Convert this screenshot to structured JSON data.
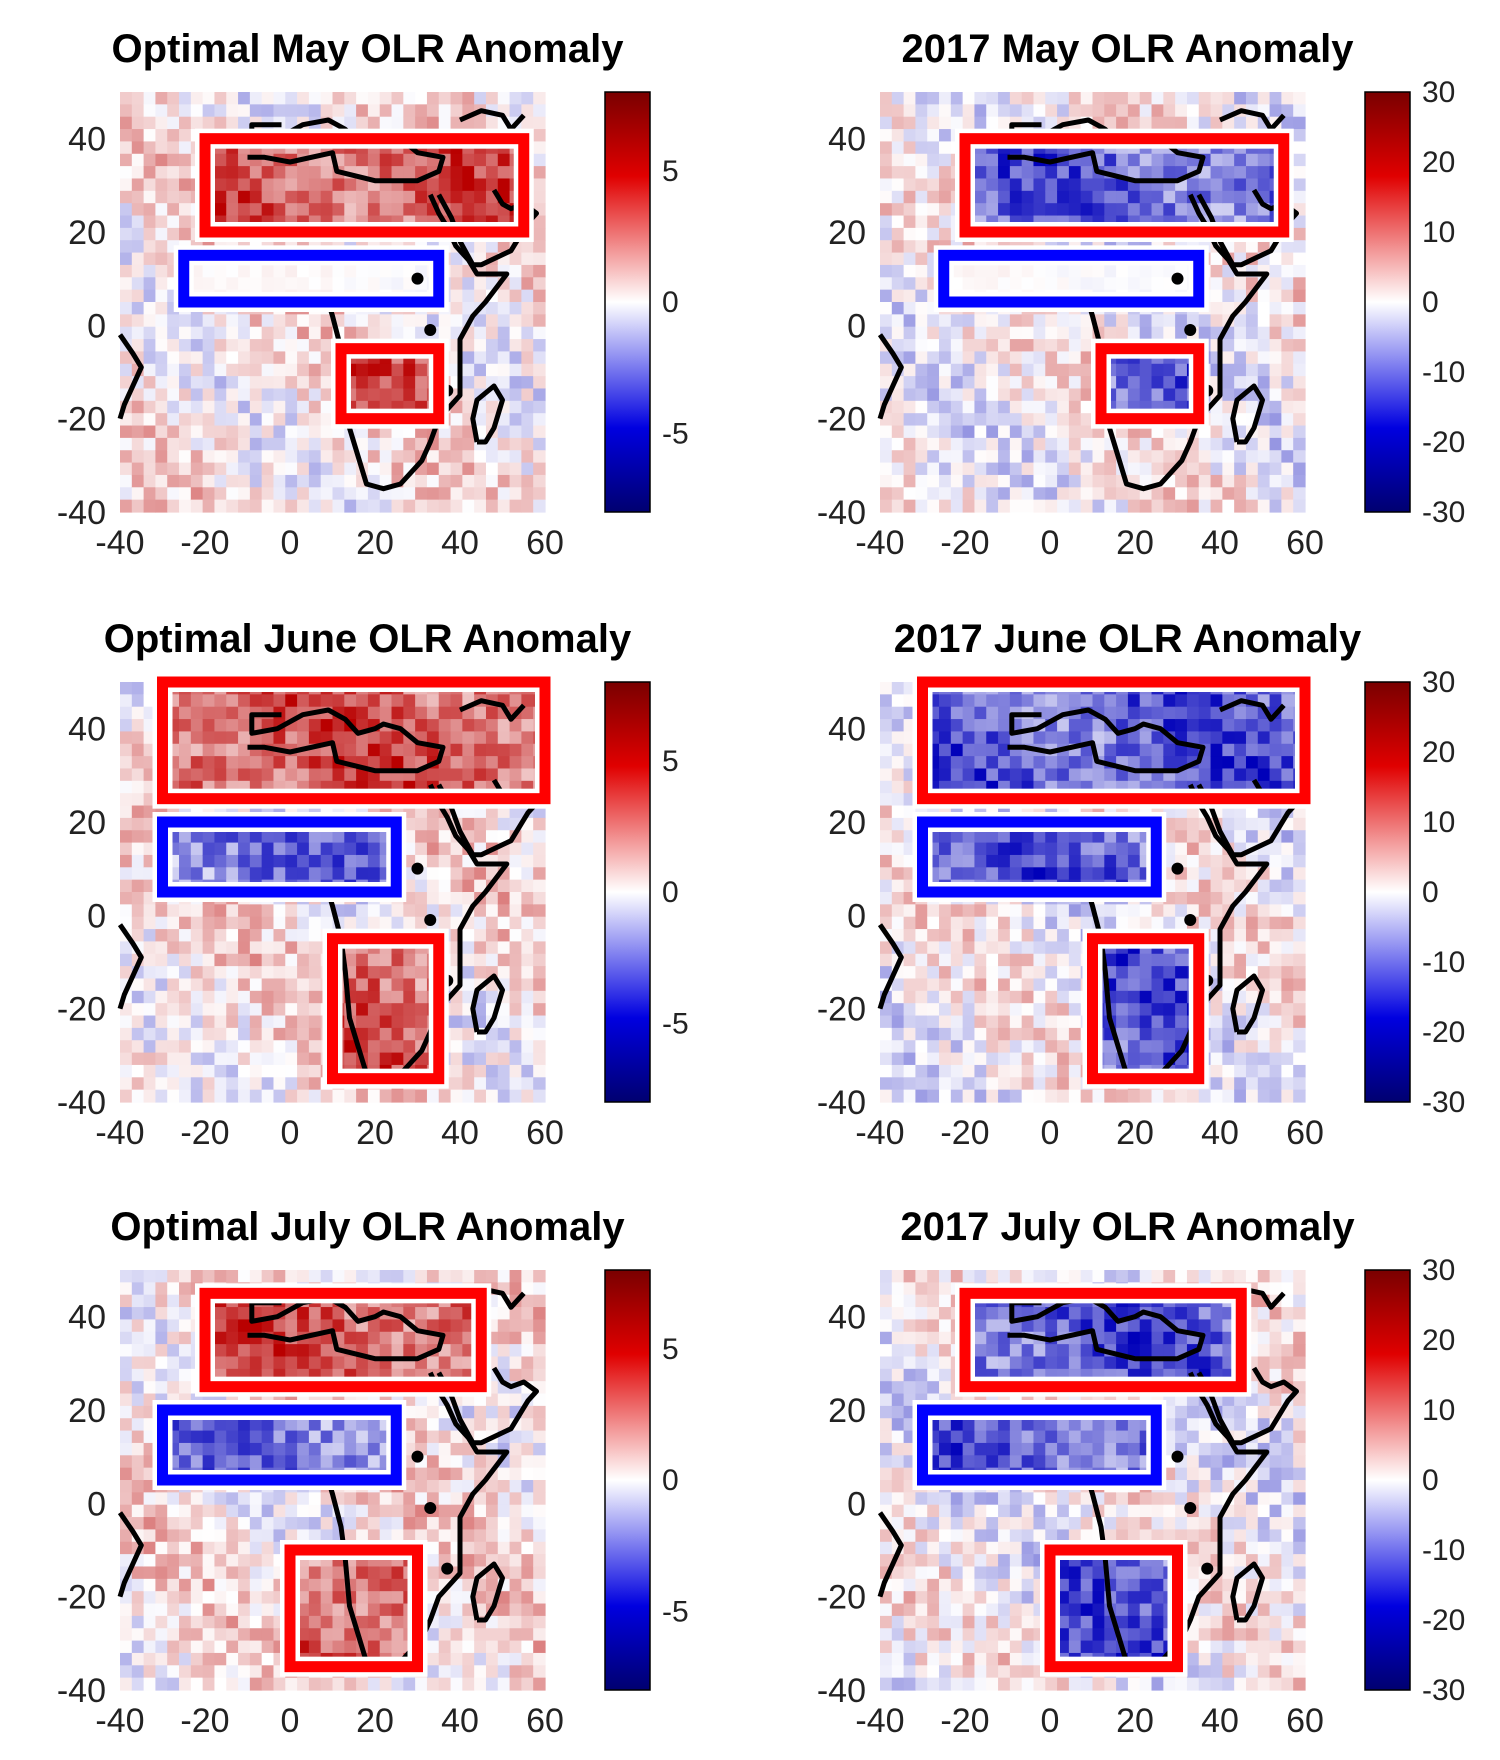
{
  "figure": {
    "panels": [
      {
        "id": "may-optimal",
        "title": "Optimal May OLR Anomaly",
        "colorbar": {
          "range": [
            -8,
            8
          ],
          "ticks": [
            5,
            0,
            -5
          ],
          "tick_labels": [
            "5",
            "0",
            "-5"
          ]
        }
      },
      {
        "id": "may-2017",
        "title": "2017 May OLR Anomaly",
        "colorbar": {
          "range": [
            -30,
            30
          ],
          "ticks": [
            30,
            20,
            10,
            0,
            -10,
            -20,
            -30
          ],
          "tick_labels": [
            "30",
            "20",
            "10",
            "0",
            "-10",
            "-20",
            "-30"
          ]
        }
      },
      {
        "id": "june-optimal",
        "title": "Optimal June OLR Anomaly",
        "colorbar": {
          "range": [
            -8,
            8
          ],
          "ticks": [
            5,
            0,
            -5
          ],
          "tick_labels": [
            "5",
            "0",
            "-5"
          ]
        }
      },
      {
        "id": "june-2017",
        "title": "2017 June OLR Anomaly",
        "colorbar": {
          "range": [
            -30,
            30
          ],
          "ticks": [
            30,
            20,
            10,
            0,
            -10,
            -20,
            -30
          ],
          "tick_labels": [
            "30",
            "20",
            "10",
            "0",
            "-10",
            "-20",
            "-30"
          ]
        }
      },
      {
        "id": "july-optimal",
        "title": "Optimal July OLR Anomaly",
        "colorbar": {
          "range": [
            -8,
            8
          ],
          "ticks": [
            5,
            0,
            -5
          ],
          "tick_labels": [
            "5",
            "0",
            "-5"
          ]
        }
      },
      {
        "id": "july-2017",
        "title": "2017 July OLR Anomaly",
        "colorbar": {
          "range": [
            -30,
            30
          ],
          "ticks": [
            30,
            20,
            10,
            0,
            -10,
            -20,
            -30
          ],
          "tick_labels": [
            "30",
            "20",
            "10",
            "0",
            "-10",
            "-20",
            "-30"
          ]
        }
      }
    ],
    "x_ticks": [
      "-40",
      "-20",
      "0",
      "20",
      "40",
      "60"
    ],
    "y_ticks": [
      "40",
      "20",
      "0",
      "-20",
      "-40"
    ],
    "colors": {
      "positive": "#e00000",
      "negative": "#0000e0",
      "coast": "#000000",
      "red_box": "#ff0000",
      "blue_box": "#0000ff"
    }
  },
  "chart_data": [
    {
      "type": "heatmap",
      "title": "Optimal May OLR Anomaly",
      "x_range": [
        -40,
        60
      ],
      "y_range": [
        -40,
        50
      ],
      "colorbar_range": [
        -8,
        8
      ],
      "boxes": [
        {
          "color": "red",
          "lon": [
            -20,
            55
          ],
          "lat": [
            20,
            40
          ],
          "sign": "positive"
        },
        {
          "color": "blue",
          "lon": [
            -25,
            35
          ],
          "lat": [
            5,
            15
          ],
          "sign": "neutral"
        },
        {
          "color": "red",
          "lon": [
            12,
            35
          ],
          "lat": [
            -20,
            -5
          ],
          "sign": "positive"
        }
      ]
    },
    {
      "type": "heatmap",
      "title": "2017 May OLR Anomaly",
      "x_range": [
        -40,
        60
      ],
      "y_range": [
        -40,
        50
      ],
      "colorbar_range": [
        -30,
        30
      ],
      "boxes": [
        {
          "color": "red",
          "lon": [
            -20,
            55
          ],
          "lat": [
            20,
            40
          ],
          "sign": "negative"
        },
        {
          "color": "blue",
          "lon": [
            -25,
            35
          ],
          "lat": [
            5,
            15
          ],
          "sign": "neutral"
        },
        {
          "color": "red",
          "lon": [
            12,
            35
          ],
          "lat": [
            -20,
            -5
          ],
          "sign": "negative"
        }
      ]
    },
    {
      "type": "heatmap",
      "title": "Optimal June OLR Anomaly",
      "x_range": [
        -40,
        60
      ],
      "y_range": [
        -40,
        50
      ],
      "colorbar_range": [
        -8,
        8
      ],
      "boxes": [
        {
          "color": "red",
          "lon": [
            -30,
            60
          ],
          "lat": [
            25,
            50
          ],
          "sign": "positive"
        },
        {
          "color": "blue",
          "lon": [
            -30,
            25
          ],
          "lat": [
            5,
            20
          ],
          "sign": "negative"
        },
        {
          "color": "red",
          "lon": [
            10,
            35
          ],
          "lat": [
            -35,
            -5
          ],
          "sign": "positive"
        }
      ]
    },
    {
      "type": "heatmap",
      "title": "2017 June OLR Anomaly",
      "x_range": [
        -40,
        60
      ],
      "y_range": [
        -40,
        50
      ],
      "colorbar_range": [
        -30,
        30
      ],
      "boxes": [
        {
          "color": "red",
          "lon": [
            -30,
            60
          ],
          "lat": [
            25,
            50
          ],
          "sign": "negative"
        },
        {
          "color": "blue",
          "lon": [
            -30,
            25
          ],
          "lat": [
            5,
            20
          ],
          "sign": "negative"
        },
        {
          "color": "red",
          "lon": [
            10,
            35
          ],
          "lat": [
            -35,
            -5
          ],
          "sign": "negative"
        }
      ]
    },
    {
      "type": "heatmap",
      "title": "Optimal July OLR Anomaly",
      "x_range": [
        -40,
        60
      ],
      "y_range": [
        -40,
        50
      ],
      "colorbar_range": [
        -8,
        8
      ],
      "boxes": [
        {
          "color": "red",
          "lon": [
            -20,
            45
          ],
          "lat": [
            25,
            45
          ],
          "sign": "positive"
        },
        {
          "color": "blue",
          "lon": [
            -30,
            25
          ],
          "lat": [
            5,
            20
          ],
          "sign": "negative"
        },
        {
          "color": "red",
          "lon": [
            0,
            30
          ],
          "lat": [
            -35,
            -10
          ],
          "sign": "positive"
        }
      ]
    },
    {
      "type": "heatmap",
      "title": "2017 July OLR Anomaly",
      "x_range": [
        -40,
        60
      ],
      "y_range": [
        -40,
        50
      ],
      "colorbar_range": [
        -30,
        30
      ],
      "boxes": [
        {
          "color": "red",
          "lon": [
            -20,
            45
          ],
          "lat": [
            25,
            45
          ],
          "sign": "negative"
        },
        {
          "color": "blue",
          "lon": [
            -30,
            25
          ],
          "lat": [
            5,
            20
          ],
          "sign": "negative"
        },
        {
          "color": "red",
          "lon": [
            0,
            30
          ],
          "lat": [
            -35,
            -10
          ],
          "sign": "negative"
        }
      ]
    }
  ]
}
